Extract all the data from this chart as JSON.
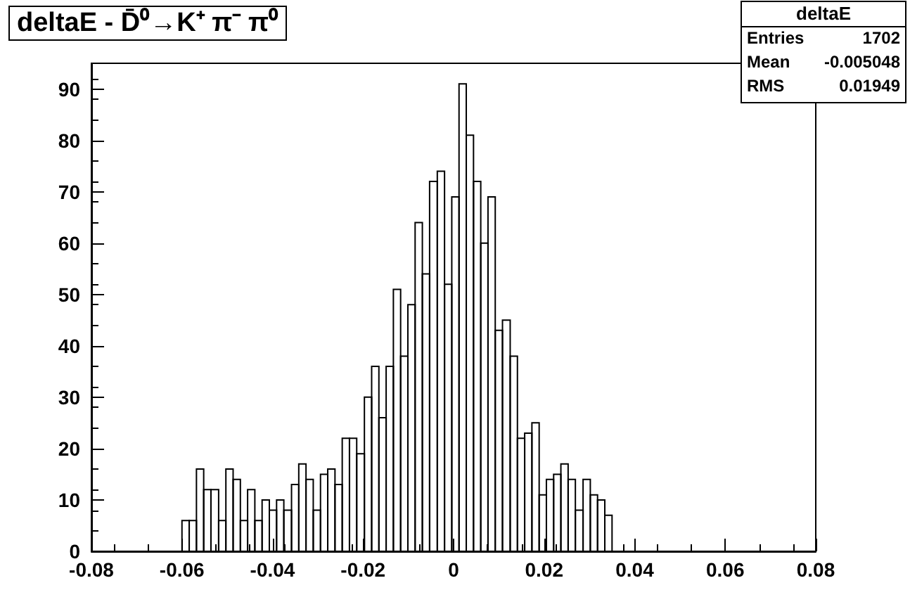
{
  "chart_data": {
    "type": "histogram",
    "title": "deltaE - D̄⁰→K⁺ π⁻ π⁰",
    "bins": [
      -0.06,
      -0.0584,
      -0.0568,
      -0.0552,
      -0.0536,
      -0.0519,
      -0.0503,
      -0.0487,
      -0.0471,
      -0.0455,
      -0.0439,
      -0.0423,
      -0.0407,
      -0.0391,
      -0.0375,
      -0.0358,
      -0.0342,
      -0.0326,
      -0.031,
      -0.0294,
      -0.0278,
      -0.0262,
      -0.0246,
      -0.023,
      -0.0214,
      -0.0197,
      -0.0181,
      -0.0165,
      -0.0149,
      -0.0133,
      -0.0117,
      -0.0101,
      -0.0085,
      -0.0069,
      -0.0053,
      -0.0036,
      -0.002,
      -0.0004,
      0.0012,
      0.0028,
      0.0044,
      0.006,
      0.0076,
      0.0092,
      0.0108,
      0.0125,
      0.0141,
      0.0157,
      0.0173,
      0.0189,
      0.0205,
      0.0221,
      0.0237,
      0.0253,
      0.0269,
      0.0286,
      0.0302,
      0.0318,
      0.0334,
      0.035
    ],
    "values": [
      6,
      6,
      16,
      12,
      12,
      6,
      16,
      14,
      6,
      12,
      6,
      10,
      8,
      10,
      8,
      13,
      17,
      14,
      8,
      15,
      16,
      13,
      22,
      22,
      19,
      30,
      36,
      26,
      36,
      51,
      38,
      48,
      64,
      54,
      72,
      74,
      52,
      69,
      91,
      81,
      72,
      60,
      69,
      43,
      45,
      38,
      22,
      23,
      25,
      11,
      14,
      15,
      17,
      14,
      8,
      14,
      11,
      10,
      7
    ],
    "color": "#000000",
    "xlim": [
      -0.08,
      0.08
    ],
    "xticks": [
      -0.08,
      -0.06,
      -0.04,
      -0.02,
      0,
      0.02,
      0.04,
      0.06,
      0.08
    ],
    "ylim": [
      0,
      95
    ],
    "yticks": [
      0,
      10,
      20,
      30,
      40,
      50,
      60,
      70,
      80,
      90
    ],
    "grid": false,
    "annotations": [
      "deltaE",
      "Entries",
      "1702",
      "Mean",
      "-0.005048",
      "RMS",
      "0.01949"
    ]
  }
}
